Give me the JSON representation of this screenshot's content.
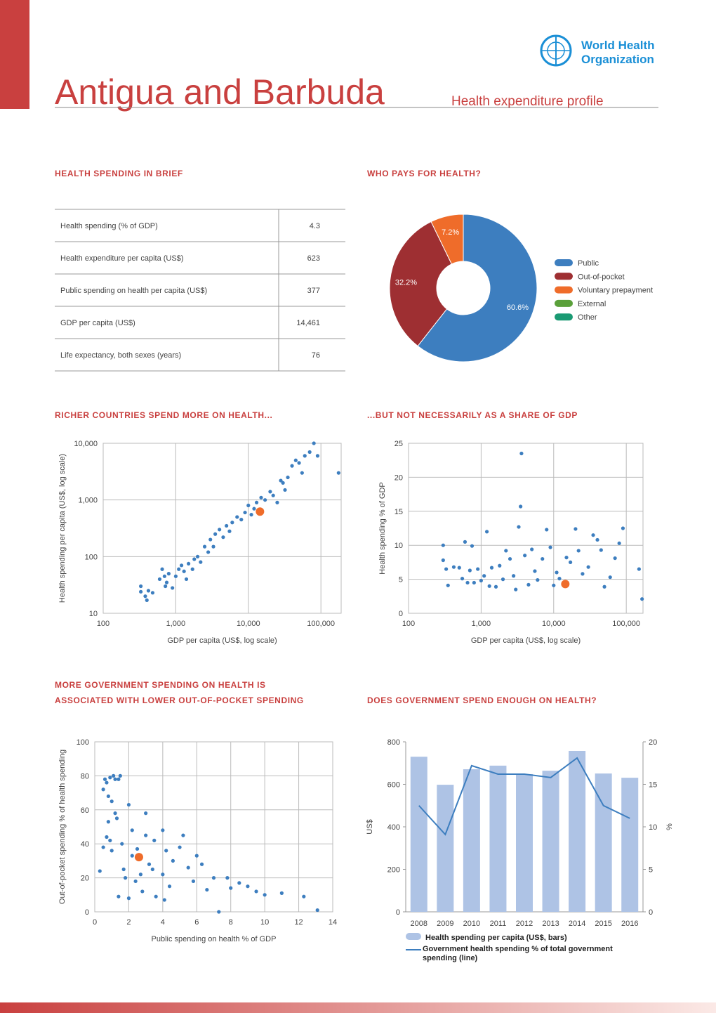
{
  "header": {
    "country": "Antigua and Barbuda",
    "subtitle": "Health expenditure profile",
    "org": [
      "World Health",
      "Organization"
    ]
  },
  "brief": {
    "title": "HEALTH SPENDING IN BRIEF",
    "rows": [
      [
        "Health spending (% of GDP)",
        "4.3"
      ],
      [
        "Health expenditure per capita (US$)",
        "623"
      ],
      [
        "Public spending on health per capita (US$)",
        "377"
      ],
      [
        "GDP per capita (US$)",
        "14,461"
      ],
      [
        "Life expectancy, both sexes (years)",
        "76"
      ]
    ]
  },
  "chart_data": [
    {
      "type": "pie",
      "title": "WHO PAYS FOR HEALTH?",
      "categories": [
        "Public",
        "Out-of-pocket",
        "Voluntary prepayment",
        "External",
        "Other"
      ],
      "values": [
        60.6,
        32.2,
        7.2,
        null,
        null
      ],
      "value_labels": [
        "60.6%",
        "32.2%",
        "7.2%",
        null,
        null
      ],
      "colors": [
        "#3d7ebf",
        "#9e2f32",
        "#ef6c2a",
        "#5aa03a",
        "#1a9a73"
      ]
    },
    {
      "type": "scatter",
      "title": "RICHER COUNTRIES SPEND MORE ON HEALTH...",
      "x_label": "GDP per capita (US$, log scale)",
      "y_label": "Health spending per capita (US$, log scale)",
      "xlog": true,
      "ylog": true,
      "grid": true,
      "color": "#3d7ebf",
      "xlim": [
        100,
        190000
      ],
      "xticks": [
        100,
        {
          "value": 1000,
          "label": "1,000"
        },
        {
          "value": 10000,
          "label": "10,000"
        },
        {
          "value": 100000,
          "label": "100,000"
        }
      ],
      "ylim": [
        10,
        10000
      ],
      "yticks": [
        10,
        100,
        {
          "value": 1000,
          "label": "1,000"
        },
        {
          "value": 10000,
          "label": "10,000"
        }
      ],
      "x": [
        330,
        330,
        380,
        400,
        420,
        480,
        600,
        650,
        700,
        720,
        750,
        800,
        900,
        1000,
        1100,
        1200,
        1300,
        1400,
        1500,
        1700,
        1800,
        2000,
        2200,
        2500,
        2800,
        3000,
        3300,
        3500,
        4000,
        4500,
        5000,
        5500,
        6000,
        7000,
        8000,
        9000,
        10000,
        11000,
        12000,
        13000,
        15000,
        17000,
        20000,
        22000,
        25000,
        30000,
        35000,
        40000,
        45000,
        50000,
        55000,
        60000,
        70000,
        80000,
        90000,
        175000,
        32000,
        28000
      ],
      "values": [
        30,
        24,
        20,
        17,
        25,
        23,
        40,
        60,
        45,
        30,
        35,
        50,
        28,
        45,
        60,
        70,
        55,
        40,
        75,
        60,
        90,
        100,
        80,
        150,
        120,
        200,
        150,
        250,
        300,
        220,
        350,
        280,
        400,
        500,
        450,
        600,
        800,
        550,
        700,
        900,
        1100,
        1000,
        1400,
        1200,
        900,
        2000,
        2500,
        4000,
        5000,
        4500,
        3000,
        6000,
        7000,
        10000,
        6000,
        3000,
        1500,
        2200
      ],
      "highlight": {
        "x": 14461,
        "value": 623,
        "color": "#ef6c2a"
      }
    },
    {
      "type": "scatter",
      "title": "...BUT NOT NECESSARILY AS A SHARE OF GDP",
      "x_label": "GDP per capita (US$, log scale)",
      "y_label": "Health spending % of GDP",
      "xlog": true,
      "ylog": false,
      "grid": true,
      "color": "#3d7ebf",
      "xlim": [
        100,
        170000
      ],
      "xticks": [
        100,
        {
          "value": 1000,
          "label": "1,000"
        },
        {
          "value": 10000,
          "label": "10,000"
        },
        {
          "value": 100000,
          "label": "100,000"
        }
      ],
      "ylim": [
        0,
        25
      ],
      "yticks": [
        0,
        5,
        10,
        15,
        20,
        25
      ],
      "x": [
        300,
        300,
        330,
        350,
        420,
        500,
        550,
        600,
        650,
        700,
        750,
        800,
        900,
        1000,
        1100,
        1200,
        1300,
        1400,
        1600,
        1800,
        2000,
        2200,
        2500,
        2800,
        3000,
        3300,
        3500,
        3600,
        4000,
        4500,
        5000,
        5500,
        6000,
        7000,
        8000,
        9000,
        10000,
        11000,
        12000,
        15000,
        17000,
        20000,
        22000,
        25000,
        30000,
        35000,
        40000,
        45000,
        50000,
        60000,
        70000,
        80000,
        90000,
        150000,
        165000
      ],
      "values": [
        10,
        7.8,
        6.5,
        4.1,
        6.8,
        6.7,
        5.1,
        10.5,
        4.5,
        6.3,
        9.9,
        4.5,
        6.5,
        4.8,
        5.5,
        12,
        4,
        6.7,
        3.9,
        7,
        5,
        9.2,
        8,
        5.5,
        3.5,
        12.7,
        15.7,
        23.5,
        8.5,
        4.2,
        9.4,
        6.2,
        4.9,
        8,
        12.3,
        9.7,
        4.1,
        6,
        5.1,
        8.2,
        7.5,
        12.4,
        9.2,
        5.8,
        6.8,
        11.5,
        10.8,
        9.3,
        3.9,
        5.3,
        8.1,
        10.3,
        12.5,
        6.5,
        2.1
      ],
      "highlight": {
        "x": 14461,
        "value": 4.3,
        "color": "#ef6c2a"
      }
    },
    {
      "type": "scatter",
      "title": [
        "MORE GOVERNMENT SPENDING ON HEALTH IS",
        "ASSOCIATED WITH LOWER OUT-OF-POCKET SPENDING"
      ],
      "x_label": "Public spending on health % of GDP",
      "y_label": "Out-of-pocket spending % of health spending",
      "xlog": false,
      "ylog": false,
      "grid": true,
      "color": "#3d7ebf",
      "xlim": [
        0,
        14
      ],
      "xticks": [
        0,
        2,
        4,
        6,
        8,
        10,
        12,
        14
      ],
      "ylim": [
        0,
        100
      ],
      "yticks": [
        0,
        20,
        40,
        60,
        80,
        100
      ],
      "x": [
        0.5,
        0.6,
        0.7,
        0.8,
        0.8,
        0.9,
        1,
        1.1,
        1.2,
        0.5,
        0.7,
        0.9,
        1,
        1.2,
        1.3,
        1.4,
        1.5,
        1.6,
        1.7,
        1.8,
        2,
        2,
        2.2,
        2.4,
        2.5,
        2.7,
        2.8,
        3,
        3,
        3.2,
        3.5,
        3.6,
        4,
        4,
        4.2,
        4.4,
        4.6,
        5,
        5.2,
        5.5,
        5.8,
        6,
        6.3,
        6.6,
        7,
        7.3,
        7.8,
        8,
        8.5,
        9,
        9.5,
        10,
        11,
        12.3,
        13.1,
        0.3,
        1.4,
        2.2,
        3.4,
        4.1
      ],
      "values": [
        72,
        78,
        76,
        68,
        53,
        79,
        65,
        80,
        78,
        38,
        44,
        42,
        36,
        58,
        55,
        78,
        80,
        40,
        25,
        20,
        63,
        8,
        48,
        18,
        37,
        22,
        12,
        58,
        45,
        28,
        42,
        9,
        48,
        22,
        36,
        15,
        30,
        38,
        45,
        26,
        18,
        33,
        28,
        13,
        20,
        0,
        20,
        14,
        17,
        15,
        12,
        10,
        11,
        9,
        1,
        24,
        9,
        33,
        25,
        7
      ],
      "highlight": {
        "x": 2.6,
        "value": 32.2,
        "color": "#ef6c2a"
      }
    },
    {
      "type": "combo",
      "title": "DOES GOVERNMENT SPEND ENOUGH ON HEALTH?",
      "y_label": "US$",
      "y2_label": "%",
      "grid": false,
      "categories": [
        "2008",
        "2009",
        "2010",
        "2011",
        "2012",
        "2013",
        "2014",
        "2015",
        "2016"
      ],
      "ylim": [
        0,
        800
      ],
      "yticks": [
        0,
        200,
        400,
        600,
        800
      ],
      "y2lim": [
        0,
        20
      ],
      "y2ticks": [
        0,
        5,
        10,
        15,
        20
      ],
      "series": [
        {
          "name": "Health spending per capita (US$, bars)",
          "color": "#aec3e5",
          "kind": "bar",
          "values": [
            730,
            598,
            671,
            688,
            648,
            664,
            757,
            651,
            631
          ]
        },
        {
          "name": "Government health spending % of total government spending (line)",
          "color": "#3d7ebf",
          "kind": "line",
          "axis": "y2",
          "values": [
            12.5,
            9.1,
            17.2,
            16.2,
            16.2,
            15.8,
            18.1,
            12.5,
            11.0
          ]
        }
      ]
    }
  ]
}
